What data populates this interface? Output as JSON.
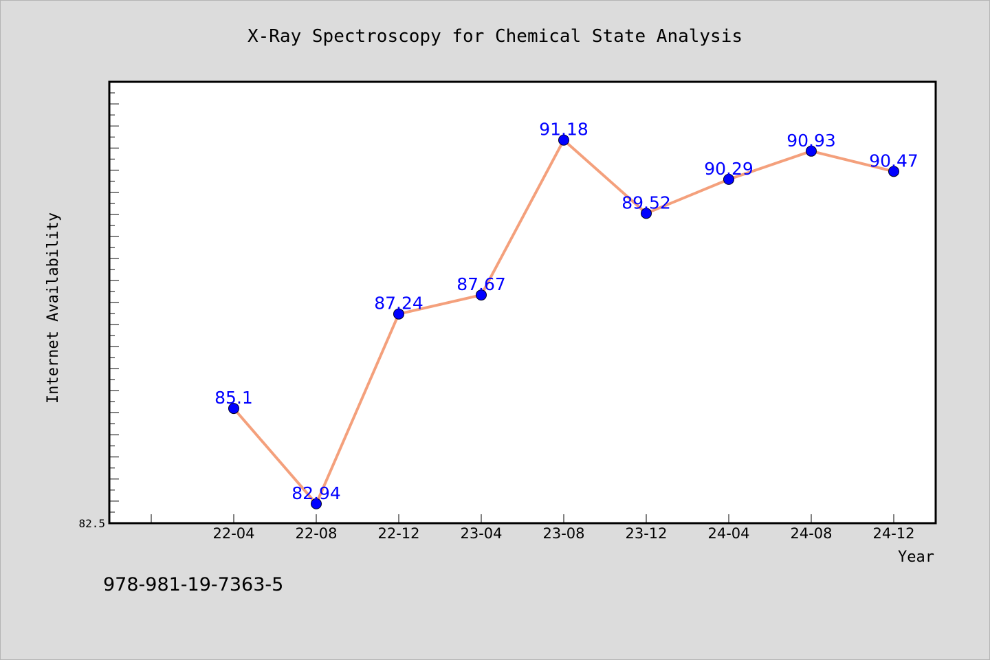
{
  "chart_data": {
    "type": "line",
    "title": "X-Ray Spectroscopy for Chemical State Analysis",
    "xlabel": "Year",
    "ylabel": "Internet Availability",
    "categories": [
      "22-04",
      "22-08",
      "22-12",
      "23-04",
      "23-08",
      "23-12",
      "24-04",
      "24-08",
      "24-12"
    ],
    "series": [
      {
        "values": [
          85.1,
          82.94,
          87.24,
          87.67,
          91.18,
          89.52,
          90.29,
          90.93,
          90.47
        ],
        "labels": [
          "85.1",
          "82.94",
          "87.24",
          "87.67",
          "91.18",
          "89.52",
          "90.29",
          "90.93",
          "90.47"
        ]
      }
    ],
    "y_tick_labels": [
      "82.5"
    ],
    "ylim": [
      82.5,
      92.5
    ],
    "grid": false,
    "colors": {
      "line": "#f4a07c",
      "marker": "#0000ff",
      "label": "#0000ff",
      "background": "#dcdcdc",
      "plot_bg": "#ffffff"
    }
  },
  "footer": {
    "isbn": "978-981-19-7363-5"
  }
}
